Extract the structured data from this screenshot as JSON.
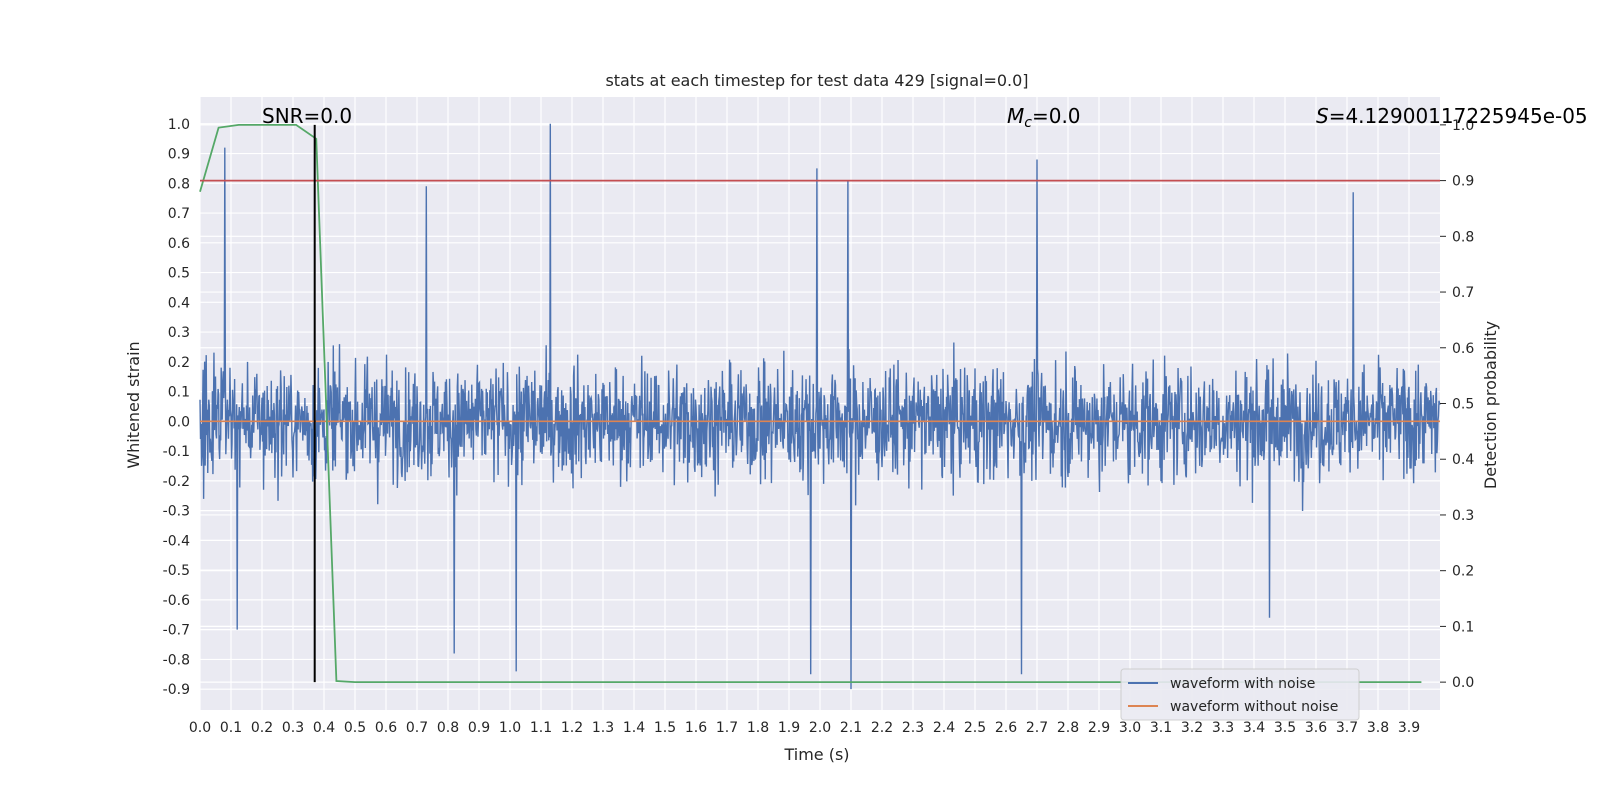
{
  "colors": {
    "background": "#eaeaf2",
    "grid": "#ffffff",
    "noise_wave": "#4c72b0",
    "clean_wave": "#dd8452",
    "probability": "#55a868",
    "threshold": "#c44e52",
    "marker": "#000000"
  },
  "chart_data": {
    "type": "line",
    "title": "stats at each timestep for test data 429 [signal=0.0]",
    "xlabel": "Time (s)",
    "ylabel": "Whitened strain",
    "y2label": "Detection probability",
    "xlim": [
      0.0,
      4.0
    ],
    "ylim": [
      -0.97,
      1.09
    ],
    "y2lim": [
      -0.05,
      1.05
    ],
    "grid": true,
    "x_ticks": [
      "0.0",
      "0.1",
      "0.2",
      "0.3",
      "0.4",
      "0.5",
      "0.6",
      "0.7",
      "0.8",
      "0.9",
      "1.0",
      "1.1",
      "1.2",
      "1.3",
      "1.4",
      "1.5",
      "1.6",
      "1.7",
      "1.8",
      "1.9",
      "2.0",
      "2.1",
      "2.2",
      "2.3",
      "2.4",
      "2.5",
      "2.6",
      "2.7",
      "2.8",
      "2.9",
      "3.0",
      "3.1",
      "3.2",
      "3.3",
      "3.4",
      "3.5",
      "3.6",
      "3.7",
      "3.8",
      "3.9"
    ],
    "y_ticks": [
      "1.0",
      "0.9",
      "0.8",
      "0.7",
      "0.6",
      "0.5",
      "0.4",
      "0.3",
      "0.2",
      "0.1",
      "0.0",
      "-0.1",
      "-0.2",
      "-0.3",
      "-0.4",
      "-0.5",
      "-0.6",
      "-0.7",
      "-0.8",
      "-0.9"
    ],
    "y2_ticks": [
      "1.0",
      "0.9",
      "0.8",
      "0.7",
      "0.6",
      "0.5",
      "0.4",
      "0.3",
      "0.2",
      "0.1",
      "0.0"
    ],
    "annotations": {
      "snr": "SNR=0.0",
      "mc_symbol": "M",
      "mc_sub": "c",
      "mc_value": "=0.0",
      "s_symbol": "S",
      "s_value": "=4.12900117225945e-05"
    },
    "marker_x": 0.37,
    "threshold_probability": 0.9,
    "legend_position": "lower-right",
    "series": [
      {
        "name": "waveform with noise",
        "axis": "left",
        "style": "dense noise, amplitude ~±0.4, sampled ~2048 Hz",
        "peaks": [
          {
            "x": 0.08,
            "y": 0.92
          },
          {
            "x": 1.13,
            "y": 1.0
          },
          {
            "x": 1.99,
            "y": 0.85
          },
          {
            "x": 2.09,
            "y": 0.81
          },
          {
            "x": 2.7,
            "y": 0.88
          },
          {
            "x": 0.73,
            "y": 0.79
          },
          {
            "x": 3.72,
            "y": 0.77
          },
          {
            "x": 0.12,
            "y": -0.7
          },
          {
            "x": 0.82,
            "y": -0.78
          },
          {
            "x": 1.02,
            "y": -0.84
          },
          {
            "x": 1.97,
            "y": -0.85
          },
          {
            "x": 2.1,
            "y": -0.9
          },
          {
            "x": 2.65,
            "y": -0.85
          },
          {
            "x": 3.45,
            "y": -0.66
          }
        ]
      },
      {
        "name": "waveform without noise",
        "axis": "left",
        "x": [
          0.0,
          4.0
        ],
        "y": [
          0.0,
          0.0
        ]
      },
      {
        "name": "Detection probability",
        "axis": "right",
        "x": [
          0.0,
          0.06,
          0.125,
          0.25,
          0.31,
          0.375,
          0.44,
          0.5,
          0.56,
          0.625,
          3.94
        ],
        "y": [
          0.88,
          0.995,
          1.0,
          1.0,
          1.0,
          0.975,
          0.002,
          0.0,
          0.0,
          0.0,
          0.0
        ]
      }
    ]
  }
}
